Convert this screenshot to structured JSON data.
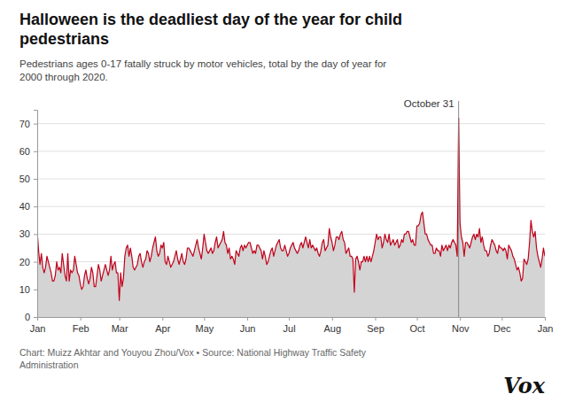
{
  "chart_data": {
    "type": "area",
    "title": "Halloween is the deadliest day of the year for child\npedestrians",
    "subtitle": "Pedestrians ages 0-17 fatally struck by motor vehicles, total by the day of year for\n2000 through 2020.",
    "footnote": "Chart: Muizz Akhtar and Youyou Zhou/Vox  •  Source: National Highway Traffic Safety\nAdministration",
    "logo": "Vox",
    "annotations": [
      {
        "text": "October 31",
        "x": 304
      }
    ],
    "color": "#c0001a",
    "grid": true,
    "xlim": [
      1,
      366
    ],
    "xticks": [
      {
        "value": 1,
        "label": "Jan"
      },
      {
        "value": 32,
        "label": "Feb"
      },
      {
        "value": 60,
        "label": "Mar"
      },
      {
        "value": 91,
        "label": "Apr"
      },
      {
        "value": 121,
        "label": "May"
      },
      {
        "value": 152,
        "label": "Jun"
      },
      {
        "value": 182,
        "label": "Jul"
      },
      {
        "value": 213,
        "label": "Aug"
      },
      {
        "value": 244,
        "label": "Sep"
      },
      {
        "value": 274,
        "label": "Oct"
      },
      {
        "value": 305,
        "label": "Nov"
      },
      {
        "value": 335,
        "label": "Dec"
      },
      {
        "value": 366,
        "label": "Jan"
      }
    ],
    "ylim": [
      0,
      75
    ],
    "yticks": [
      0,
      10,
      20,
      30,
      40,
      50,
      60,
      70
    ],
    "x": [
      1,
      2,
      3,
      4,
      5,
      6,
      7,
      8,
      9,
      10,
      11,
      12,
      13,
      14,
      15,
      16,
      17,
      18,
      19,
      20,
      21,
      22,
      23,
      24,
      25,
      26,
      27,
      28,
      29,
      30,
      31,
      32,
      33,
      34,
      35,
      36,
      37,
      38,
      39,
      40,
      41,
      42,
      43,
      44,
      45,
      46,
      47,
      48,
      49,
      50,
      51,
      52,
      53,
      54,
      55,
      56,
      57,
      58,
      59,
      60,
      61,
      62,
      63,
      64,
      65,
      66,
      67,
      68,
      69,
      70,
      71,
      72,
      73,
      74,
      75,
      76,
      77,
      78,
      79,
      80,
      81,
      82,
      83,
      84,
      85,
      86,
      87,
      88,
      89,
      90,
      91,
      92,
      93,
      94,
      95,
      96,
      97,
      98,
      99,
      100,
      101,
      102,
      103,
      104,
      105,
      106,
      107,
      108,
      109,
      110,
      111,
      112,
      113,
      114,
      115,
      116,
      117,
      118,
      119,
      120,
      121,
      122,
      123,
      124,
      125,
      126,
      127,
      128,
      129,
      130,
      131,
      132,
      133,
      134,
      135,
      136,
      137,
      138,
      139,
      140,
      141,
      142,
      143,
      144,
      145,
      146,
      147,
      148,
      149,
      150,
      151,
      152,
      153,
      154,
      155,
      156,
      157,
      158,
      159,
      160,
      161,
      162,
      163,
      164,
      165,
      166,
      167,
      168,
      169,
      170,
      171,
      172,
      173,
      174,
      175,
      176,
      177,
      178,
      179,
      180,
      181,
      182,
      183,
      184,
      185,
      186,
      187,
      188,
      189,
      190,
      191,
      192,
      193,
      194,
      195,
      196,
      197,
      198,
      199,
      200,
      201,
      202,
      203,
      204,
      205,
      206,
      207,
      208,
      209,
      210,
      211,
      212,
      213,
      214,
      215,
      216,
      217,
      218,
      219,
      220,
      221,
      222,
      223,
      224,
      225,
      226,
      227,
      228,
      229,
      230,
      231,
      232,
      233,
      234,
      235,
      236,
      237,
      238,
      239,
      240,
      241,
      242,
      243,
      244,
      245,
      246,
      247,
      248,
      249,
      250,
      251,
      252,
      253,
      254,
      255,
      256,
      257,
      258,
      259,
      260,
      261,
      262,
      263,
      264,
      265,
      266,
      267,
      268,
      269,
      270,
      271,
      272,
      273,
      274,
      275,
      276,
      277,
      278,
      279,
      280,
      281,
      282,
      283,
      284,
      285,
      286,
      287,
      288,
      289,
      290,
      291,
      292,
      293,
      294,
      295,
      296,
      297,
      298,
      299,
      300,
      301,
      302,
      303,
      304,
      305,
      306,
      307,
      308,
      309,
      310,
      311,
      312,
      313,
      314,
      315,
      316,
      317,
      318,
      319,
      320,
      321,
      322,
      323,
      324,
      325,
      326,
      327,
      328,
      329,
      330,
      331,
      332,
      333,
      334,
      335,
      336,
      337,
      338,
      339,
      340,
      341,
      342,
      343,
      344,
      345,
      346,
      347,
      348,
      349,
      350,
      351,
      352,
      353,
      354,
      355,
      356,
      357,
      358,
      359,
      360,
      361,
      362,
      363,
      364,
      365,
      366
    ],
    "values": [
      31,
      24,
      19,
      23,
      18,
      16,
      18,
      22,
      20,
      18,
      16,
      13,
      13,
      15,
      20,
      17,
      18,
      16,
      23,
      19,
      15,
      13,
      23,
      13,
      17,
      16,
      17,
      22,
      19,
      16,
      15,
      12,
      10,
      11,
      15,
      17,
      14,
      12,
      14,
      18,
      16,
      11,
      11,
      15,
      19,
      17,
      13,
      15,
      17,
      19,
      17,
      15,
      17,
      22,
      17,
      19,
      20,
      16,
      16,
      6,
      16,
      11,
      14,
      22,
      25,
      26,
      22,
      25,
      22,
      18,
      17,
      18,
      19,
      22,
      23,
      20,
      18,
      20,
      21,
      24,
      23,
      20,
      22,
      25,
      27,
      29,
      24,
      22,
      23,
      26,
      25,
      27,
      20,
      19,
      22,
      20,
      18,
      19,
      20,
      22,
      24,
      21,
      19,
      21,
      23,
      20,
      19,
      21,
      25,
      25,
      24,
      23,
      22,
      24,
      26,
      28,
      25,
      23,
      21,
      25,
      30,
      27,
      24,
      23,
      24,
      25,
      23,
      24,
      27,
      29,
      25,
      26,
      27,
      28,
      31,
      27,
      26,
      23,
      25,
      21,
      22,
      21,
      19,
      24,
      23,
      22,
      25,
      26,
      24,
      26,
      25,
      26,
      27,
      27,
      25,
      23,
      24,
      23,
      26,
      26,
      25,
      24,
      21,
      24,
      22,
      19,
      20,
      22,
      24,
      25,
      22,
      24,
      26,
      27,
      28,
      25,
      24,
      24,
      26,
      24,
      22,
      23,
      25,
      26,
      27,
      25,
      24,
      23,
      24,
      26,
      27,
      25,
      27,
      29,
      27,
      25,
      28,
      25,
      26,
      25,
      24,
      25,
      23,
      22,
      24,
      27,
      28,
      24,
      25,
      26,
      32,
      29,
      27,
      24,
      26,
      29,
      29,
      28,
      30,
      31,
      28,
      27,
      23,
      24,
      25,
      22,
      22,
      21,
      9,
      21,
      22,
      20,
      17,
      20,
      20,
      22,
      20,
      22,
      20,
      22,
      20,
      22,
      24,
      27,
      30,
      28,
      29,
      29,
      25,
      27,
      30,
      28,
      27,
      30,
      26,
      27,
      28,
      26,
      27,
      28,
      25,
      26,
      28,
      27,
      30,
      30,
      31,
      31,
      29,
      27,
      28,
      26,
      26,
      33,
      33,
      34,
      37,
      38,
      34,
      30,
      30,
      28,
      27,
      26,
      26,
      23,
      23,
      25,
      24,
      24,
      22,
      26,
      24,
      25,
      26,
      24,
      26,
      25,
      27,
      28,
      27,
      26,
      22,
      72,
      34,
      29,
      27,
      22,
      27,
      27,
      26,
      25,
      27,
      29,
      30,
      28,
      30,
      29,
      32,
      27,
      29,
      26,
      24,
      24,
      22,
      23,
      26,
      28,
      27,
      26,
      24,
      23,
      26,
      25,
      25,
      24,
      25,
      24,
      21,
      26,
      25,
      24,
      22,
      21,
      19,
      17,
      18,
      16,
      13,
      14,
      21,
      20,
      19,
      21,
      27,
      35,
      31,
      29,
      31,
      25,
      22,
      20,
      18,
      21,
      25,
      22
    ]
  }
}
